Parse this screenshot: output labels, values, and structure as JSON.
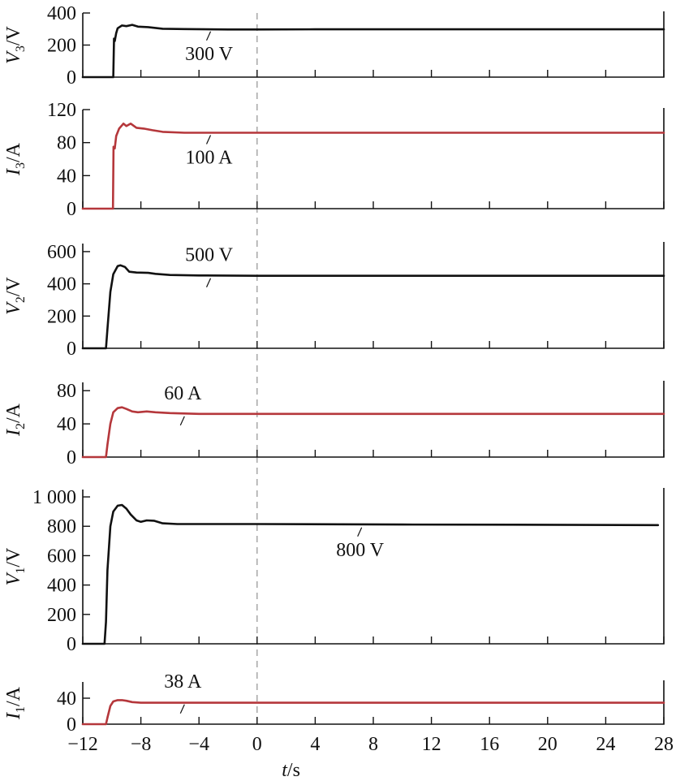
{
  "chart_data": {
    "type": "line",
    "xlabel": "t/s",
    "x_range": [
      -12,
      28
    ],
    "x_ticks": [
      -12,
      -8,
      -4,
      0,
      4,
      8,
      12,
      16,
      20,
      24,
      28
    ],
    "x_tick_labels": [
      "−12",
      "−8",
      "−4",
      "0",
      "4",
      "8",
      "12",
      "16",
      "20",
      "24",
      "28"
    ],
    "reference_line_x": 0,
    "colors": {
      "voltage": "#111111",
      "current": "#b5373b"
    },
    "panels": [
      {
        "id": "v3",
        "ylabel_main": "V",
        "ylabel_sub": "3",
        "ylabel_unit": "/V",
        "ylim": [
          0,
          400
        ],
        "y_ticks": [
          0,
          200,
          400
        ],
        "y_tick_labels": [
          "0",
          "200",
          "400"
        ],
        "color": "voltage",
        "annotation": {
          "text": "300 V",
          "x": -3.2,
          "y": 300
        },
        "series": {
          "x": [
            -12,
            -10.0,
            -9.9,
            -9.85,
            -9.8,
            -9.7,
            -9.6,
            -9.3,
            -9.0,
            -8.6,
            -8.2,
            -7.5,
            -6.5,
            -5,
            -2,
            0,
            4,
            10,
            28
          ],
          "y": [
            0,
            0,
            0,
            240,
            225,
            275,
            305,
            322,
            318,
            326,
            315,
            312,
            302,
            300,
            297,
            297,
            298,
            298,
            298
          ]
        }
      },
      {
        "id": "i3",
        "ylabel_main": "I",
        "ylabel_sub": "3",
        "ylabel_unit": "/A",
        "ylim": [
          0,
          120
        ],
        "y_ticks": [
          0,
          40,
          80,
          120
        ],
        "y_tick_labels": [
          "0",
          "40",
          "80",
          "120"
        ],
        "color": "current",
        "annotation": {
          "text": "100 A",
          "x": -3.2,
          "y": 92
        },
        "series": {
          "x": [
            -12,
            -10.0,
            -9.92,
            -9.88,
            -9.8,
            -9.7,
            -9.5,
            -9.2,
            -9.0,
            -8.7,
            -8.3,
            -7.8,
            -7.2,
            -6.5,
            -5,
            -2,
            0,
            10,
            28
          ],
          "y": [
            0,
            0,
            0,
            75,
            73,
            88,
            97,
            103,
            100,
            103,
            98,
            97,
            95,
            93,
            92,
            92,
            92,
            92,
            92
          ]
        }
      },
      {
        "id": "v2",
        "ylabel_main": "V",
        "ylabel_sub": "2",
        "ylabel_unit": "/V",
        "ylim": [
          0,
          650
        ],
        "y_ticks": [
          0,
          200,
          400,
          600
        ],
        "y_tick_labels": [
          "0",
          "200",
          "400",
          "600"
        ],
        "color": "voltage",
        "annotation": {
          "text": "500 V",
          "x": -3.2,
          "y": 450
        },
        "series": {
          "x": [
            -12,
            -10.4,
            -10.3,
            -10.1,
            -9.9,
            -9.6,
            -9.4,
            -9.1,
            -8.8,
            -8.3,
            -7.5,
            -7.0,
            -6,
            -4,
            0,
            10,
            28
          ],
          "y": [
            0,
            0,
            120,
            350,
            460,
            510,
            515,
            505,
            475,
            470,
            468,
            462,
            455,
            452,
            450,
            450,
            450
          ]
        }
      },
      {
        "id": "i2",
        "ylabel_main": "I",
        "ylabel_sub": "2",
        "ylabel_unit": "/A",
        "ylim": [
          0,
          90
        ],
        "y_ticks": [
          0,
          40,
          80
        ],
        "y_tick_labels": [
          "0",
          "40",
          "80"
        ],
        "color": "current",
        "annotation": {
          "text": "60 A",
          "x": -5.0,
          "y": 52
        },
        "series": {
          "x": [
            -12,
            -10.4,
            -10.3,
            -10.1,
            -9.9,
            -9.6,
            -9.3,
            -9.0,
            -8.6,
            -8.2,
            -7.6,
            -7.0,
            -6,
            -4,
            0,
            10,
            28
          ],
          "y": [
            0,
            0,
            15,
            40,
            54,
            59,
            60,
            58,
            55,
            54,
            55,
            54,
            53,
            52,
            52,
            52,
            52
          ]
        }
      },
      {
        "id": "v1",
        "ylabel_main": "V",
        "ylabel_sub": "1",
        "ylabel_unit": "/V",
        "ylim": [
          0,
          1050
        ],
        "y_ticks": [
          0,
          200,
          400,
          600,
          800,
          1000
        ],
        "y_tick_labels": [
          "0",
          "200",
          "400",
          "600",
          "800",
          "1 000"
        ],
        "color": "voltage",
        "annotation": {
          "text": "800 V",
          "x": 7.2,
          "y": 808
        },
        "series": {
          "x": [
            -12,
            -10.5,
            -10.4,
            -10.3,
            -10.1,
            -9.9,
            -9.6,
            -9.3,
            -9.0,
            -8.7,
            -8.3,
            -8.0,
            -7.6,
            -7.1,
            -6.5,
            -5.5,
            -4,
            0,
            10,
            20,
            27.6
          ],
          "y": [
            0,
            0,
            150,
            500,
            800,
            900,
            940,
            945,
            920,
            880,
            840,
            830,
            840,
            838,
            820,
            815,
            815,
            815,
            812,
            810,
            808
          ]
        }
      },
      {
        "id": "i1",
        "ylabel_main": "I",
        "ylabel_sub": "1",
        "ylabel_unit": "/A",
        "ylim": [
          0,
          65
        ],
        "y_ticks": [
          0,
          40
        ],
        "y_tick_labels": [
          "0",
          "40"
        ],
        "color": "current",
        "annotation": {
          "text": "38 A",
          "x": -5.0,
          "y": 34
        },
        "series": {
          "x": [
            -12,
            -10.4,
            -10.3,
            -10.1,
            -9.9,
            -9.6,
            -9.3,
            -9.0,
            -8.6,
            -8.0,
            -7.4,
            -6.5,
            -6.0,
            -5,
            0,
            10,
            28
          ],
          "y": [
            0,
            0,
            10,
            28,
            35,
            37,
            37,
            36,
            34,
            33,
            33,
            33,
            33,
            33,
            33,
            33,
            33
          ]
        }
      }
    ]
  }
}
